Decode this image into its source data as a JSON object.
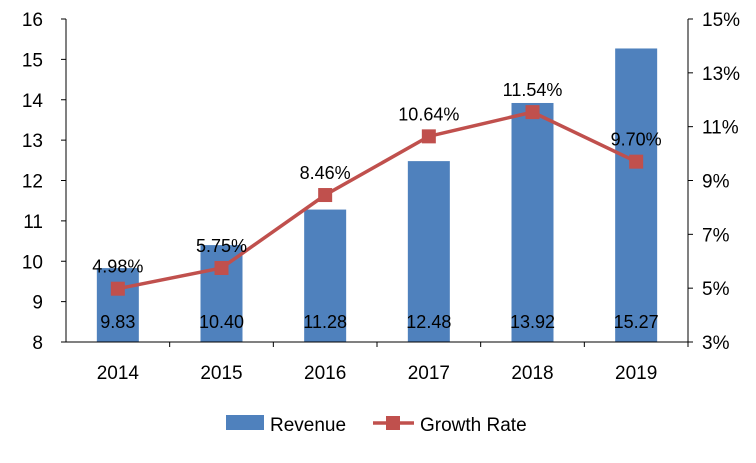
{
  "colors": {
    "bar": "#4F81BD",
    "line": "#C0504D",
    "axis": "#000000",
    "text": "#000000"
  },
  "chart_data": {
    "type": "bar",
    "categories": [
      "2014",
      "2015",
      "2016",
      "2017",
      "2018",
      "2019"
    ],
    "series": [
      {
        "name": "Revenue",
        "type": "bar",
        "axis": "left",
        "values": [
          9.83,
          10.4,
          11.28,
          12.48,
          13.92,
          15.27
        ],
        "labels": [
          "9.83",
          "10.40",
          "11.28",
          "12.48",
          "13.92",
          "15.27"
        ]
      },
      {
        "name": "Growth Rate",
        "type": "line",
        "axis": "right",
        "values": [
          4.98,
          5.75,
          8.46,
          10.64,
          11.54,
          9.7
        ],
        "labels": [
          "4.98%",
          "5.75%",
          "8.46%",
          "10.64%",
          "11.54%",
          "9.70%"
        ]
      }
    ],
    "y_left": {
      "range": [
        8,
        16
      ],
      "ticks": [
        "8",
        "9",
        "10",
        "11",
        "12",
        "13",
        "14",
        "15",
        "16"
      ]
    },
    "y_right": {
      "range": [
        3,
        15
      ],
      "ticks": [
        "3%",
        "5%",
        "7%",
        "9%",
        "11%",
        "13%",
        "15%"
      ]
    },
    "legend_position": "bottom",
    "grid": false
  }
}
